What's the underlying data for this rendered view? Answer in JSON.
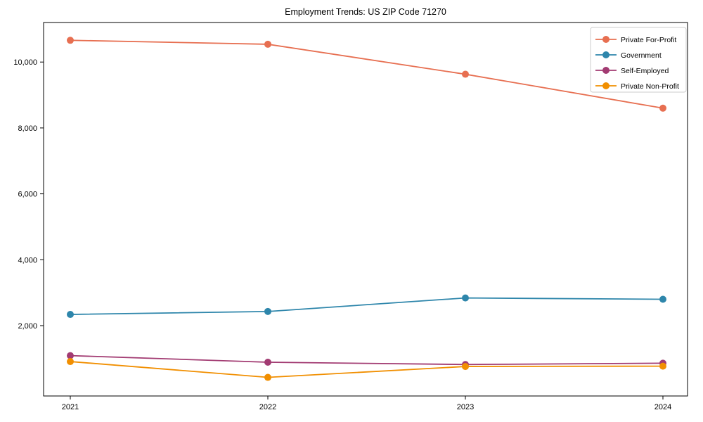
{
  "chart_data": {
    "type": "line",
    "title": "Employment Trends: US ZIP Code 71270",
    "x": [
      "2021",
      "2022",
      "2023",
      "2024"
    ],
    "series": [
      {
        "name": "Private For-Profit",
        "color": "#E76F51",
        "values": [
          10660,
          10540,
          9630,
          8600
        ]
      },
      {
        "name": "Government",
        "color": "#2E86AB",
        "values": [
          2340,
          2430,
          2840,
          2800
        ]
      },
      {
        "name": "Self-Employed",
        "color": "#A23B72",
        "values": [
          1090,
          890,
          820,
          860
        ]
      },
      {
        "name": "Private Non-Profit",
        "color": "#F18F01",
        "values": [
          910,
          430,
          760,
          770
        ]
      }
    ],
    "yticks": {
      "values": [
        2000,
        4000,
        6000,
        8000,
        10000
      ],
      "labels": [
        "2,000",
        "4,000",
        "6,000",
        "8,000",
        "10,000"
      ]
    },
    "ylim": [
      -135,
      11200
    ],
    "grid": false,
    "legend_position": "upper right",
    "axis_color": "#000000",
    "legend_border_color": "#cccccc"
  }
}
